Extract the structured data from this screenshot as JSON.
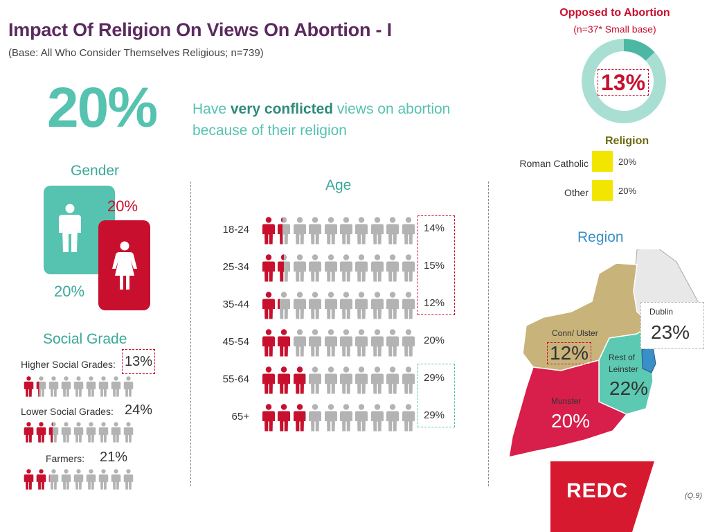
{
  "header": {
    "title": "Impact Of Religion On Views On Abortion - I",
    "subtitle": "(Base: All Who Consider Themselves Religious; n=739)"
  },
  "headline": {
    "value": "20%",
    "text_pre": "Have ",
    "text_bold": "very conflicted",
    "text_post": " views on abortion because of their religion"
  },
  "opposed": {
    "title": "Opposed to Abortion",
    "base": "(n=37* Small base)",
    "value": "13%",
    "fraction": 0.13
  },
  "religion": {
    "title": "Religion",
    "items": [
      {
        "label": "Roman Catholic",
        "value": "20%"
      },
      {
        "label": "Other",
        "value": "20%"
      }
    ]
  },
  "gender": {
    "title": "Gender",
    "male_value": "20%",
    "female_value": "20%"
  },
  "age": {
    "title": "Age",
    "total_icons": 10,
    "rows": [
      {
        "label": "18-24",
        "value": "14%",
        "fill": 1.4
      },
      {
        "label": "25-34",
        "value": "15%",
        "fill": 1.5
      },
      {
        "label": "35-44",
        "value": "12%",
        "fill": 1.2
      },
      {
        "label": "45-54",
        "value": "20%",
        "fill": 2.0
      },
      {
        "label": "55-64",
        "value": "29%",
        "fill": 2.9
      },
      {
        "label": "65+",
        "value": "29%",
        "fill": 2.9
      }
    ]
  },
  "social_grade": {
    "title": "Social Grade",
    "total_icons": 9,
    "rows": [
      {
        "label": "Higher Social Grades:",
        "value": "13%",
        "fill": 1.3
      },
      {
        "label": "Lower Social Grades:",
        "value": "24%",
        "fill": 2.4
      },
      {
        "label": "Farmers:",
        "value": "21%",
        "fill": 2.1
      }
    ]
  },
  "region": {
    "title": "Region",
    "areas": [
      {
        "label": "Conn/ Ulster",
        "value": "12%"
      },
      {
        "label": "Rest of Leinster",
        "value": "22%"
      },
      {
        "label": "Dublin",
        "value": "23%"
      },
      {
        "label": "Munster",
        "value": "20%"
      }
    ]
  },
  "logo": {
    "text": "REDC"
  },
  "footnote": "(Q.9)",
  "colors": {
    "accent_red": "#c8102e",
    "teal": "#56c2b0",
    "grey_icon": "#b3b3b3",
    "conn_ulster": "#c8b37a",
    "rest_leinster": "#5cc9b2",
    "dublin": "#3a8fc8",
    "munster": "#d81e4a",
    "religion_box": "#f2e600"
  },
  "chart_data": {
    "type": "table",
    "title": "Impact Of Religion On Views On Abortion - I",
    "subtitle": "(Base: All Who Consider Themselves Religious; n=739)",
    "overall": 20,
    "opposed_to_abortion": 13,
    "gender": [
      {
        "category": "Male",
        "value": 20
      },
      {
        "category": "Female",
        "value": 20
      }
    ],
    "age": {
      "categories": [
        "18-24",
        "25-34",
        "35-44",
        "45-54",
        "55-64",
        "65+"
      ],
      "values": [
        14,
        15,
        12,
        20,
        29,
        29
      ]
    },
    "social_grade": {
      "categories": [
        "Higher Social Grades",
        "Lower Social Grades",
        "Farmers"
      ],
      "values": [
        13,
        24,
        21
      ]
    },
    "religion": {
      "categories": [
        "Roman Catholic",
        "Other"
      ],
      "values": [
        20,
        20
      ]
    },
    "region": {
      "categories": [
        "Conn/ Ulster",
        "Rest of Leinster",
        "Dublin",
        "Munster"
      ],
      "values": [
        12,
        22,
        23,
        20
      ]
    }
  }
}
